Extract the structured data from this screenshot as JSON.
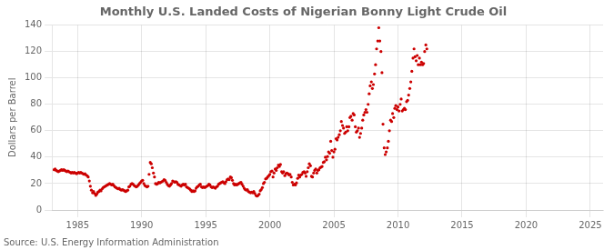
{
  "chart_data": {
    "type": "scatter",
    "title": "Monthly U.S. Landed Costs of Nigerian Bonny Light Crude Oil",
    "ylabel": "Dollars per Barrel",
    "annotation": "Source: U.S. Energy Information Administration",
    "color": "#cc0000",
    "grid": true,
    "xlim": [
      1983,
      2026
    ],
    "ylim": [
      0,
      140
    ],
    "xticks": [
      1985,
      1990,
      1995,
      2000,
      2005,
      2010,
      2015,
      2020,
      2025
    ],
    "yticks": [
      0,
      20,
      40,
      60,
      80,
      100,
      120,
      140
    ],
    "x": [
      1983.17,
      1983.25,
      1983.33,
      1983.42,
      1983.5,
      1983.58,
      1983.67,
      1983.75,
      1983.83,
      1983.92,
      1984.0,
      1984.08,
      1984.17,
      1984.25,
      1984.33,
      1984.42,
      1984.5,
      1984.58,
      1984.67,
      1984.75,
      1984.83,
      1984.92,
      1985.0,
      1985.08,
      1985.17,
      1985.25,
      1985.33,
      1985.42,
      1985.5,
      1985.58,
      1985.67,
      1985.75,
      1985.83,
      1985.92,
      1986.0,
      1986.08,
      1986.17,
      1986.25,
      1986.33,
      1986.42,
      1986.5,
      1986.58,
      1986.67,
      1986.75,
      1986.83,
      1986.92,
      1987.0,
      1987.08,
      1987.17,
      1987.25,
      1987.33,
      1987.42,
      1987.5,
      1987.58,
      1987.67,
      1987.75,
      1987.83,
      1987.92,
      1988.0,
      1988.08,
      1988.17,
      1988.25,
      1988.33,
      1988.42,
      1988.5,
      1988.58,
      1988.67,
      1988.75,
      1988.83,
      1988.92,
      1989.0,
      1989.08,
      1989.17,
      1989.25,
      1989.33,
      1989.42,
      1989.5,
      1989.58,
      1989.67,
      1989.75,
      1989.83,
      1989.92,
      1990.0,
      1990.08,
      1990.17,
      1990.25,
      1990.33,
      1990.42,
      1990.5,
      1990.58,
      1990.67,
      1990.75,
      1990.83,
      1990.92,
      1991.0,
      1991.08,
      1991.17,
      1991.25,
      1991.33,
      1991.42,
      1991.5,
      1991.58,
      1991.67,
      1991.75,
      1991.83,
      1991.92,
      1992.0,
      1992.08,
      1992.17,
      1992.25,
      1992.33,
      1992.42,
      1992.5,
      1992.58,
      1992.67,
      1992.75,
      1992.83,
      1992.92,
      1993.0,
      1993.08,
      1993.17,
      1993.25,
      1993.33,
      1993.42,
      1993.5,
      1993.58,
      1993.67,
      1993.75,
      1993.83,
      1993.92,
      1994.0,
      1994.08,
      1994.17,
      1994.25,
      1994.33,
      1994.42,
      1994.5,
      1994.58,
      1994.67,
      1994.75,
      1994.83,
      1994.92,
      1995.0,
      1995.08,
      1995.17,
      1995.25,
      1995.33,
      1995.42,
      1995.5,
      1995.58,
      1995.67,
      1995.75,
      1995.83,
      1995.92,
      1996.0,
      1996.08,
      1996.17,
      1996.25,
      1996.33,
      1996.42,
      1996.5,
      1996.58,
      1996.67,
      1996.75,
      1996.83,
      1996.92,
      1997.0,
      1997.08,
      1997.17,
      1997.25,
      1997.33,
      1997.42,
      1997.5,
      1997.58,
      1997.67,
      1997.75,
      1997.83,
      1997.92,
      1998.0,
      1998.08,
      1998.17,
      1998.25,
      1998.33,
      1998.42,
      1998.5,
      1998.58,
      1998.67,
      1998.75,
      1998.83,
      1998.92,
      1999.0,
      1999.08,
      1999.17,
      1999.25,
      1999.33,
      1999.42,
      1999.5,
      1999.58,
      1999.67,
      1999.75,
      1999.83,
      1999.92,
      2000.0,
      2000.08,
      2000.17,
      2000.25,
      2000.33,
      2000.42,
      2000.5,
      2000.58,
      2000.67,
      2000.75,
      2000.83,
      2000.92,
      2001.0,
      2001.08,
      2001.17,
      2001.25,
      2001.33,
      2001.42,
      2001.5,
      2001.58,
      2001.67,
      2001.75,
      2001.83,
      2001.92,
      2002.0,
      2002.08,
      2002.17,
      2002.25,
      2002.33,
      2002.42,
      2002.5,
      2002.58,
      2002.67,
      2002.75,
      2002.83,
      2002.92,
      2003.0,
      2003.08,
      2003.17,
      2003.25,
      2003.33,
      2003.42,
      2003.5,
      2003.58,
      2003.67,
      2003.75,
      2003.83,
      2003.92,
      2004.0,
      2004.08,
      2004.17,
      2004.25,
      2004.33,
      2004.42,
      2004.5,
      2004.58,
      2004.67,
      2004.75,
      2004.83,
      2004.92,
      2005.0,
      2005.08,
      2005.17,
      2005.25,
      2005.33,
      2005.42,
      2005.5,
      2005.58,
      2005.67,
      2005.75,
      2005.83,
      2005.92,
      2006.0,
      2006.08,
      2006.17,
      2006.25,
      2006.33,
      2006.42,
      2006.5,
      2006.58,
      2006.67,
      2006.75,
      2006.83,
      2006.92,
      2007.0,
      2007.08,
      2007.17,
      2007.25,
      2007.33,
      2007.42,
      2007.5,
      2007.58,
      2007.67,
      2007.75,
      2007.83,
      2007.92,
      2008.0,
      2008.08,
      2008.17,
      2008.25,
      2008.33,
      2008.42,
      2008.5,
      2008.58,
      2008.67,
      2008.75,
      2008.83,
      2008.92,
      2009.0,
      2009.08,
      2009.17,
      2009.25,
      2009.33,
      2009.42,
      2009.5,
      2009.58,
      2009.67,
      2009.75,
      2009.83,
      2009.92,
      2010.0,
      2010.08,
      2010.17,
      2010.25,
      2010.33,
      2010.42,
      2010.5,
      2010.58,
      2010.67,
      2010.75,
      2010.83,
      2010.92,
      2011.0,
      2011.08,
      2011.17,
      2011.25,
      2011.33,
      2011.42,
      2011.5,
      2011.58,
      2011.67,
      2011.75,
      2011.83,
      2011.92,
      2012.0,
      2012.08,
      2012.17,
      2012.25
    ],
    "values": [
      30.5,
      31.0,
      30.0,
      29.5,
      29.0,
      29.5,
      30.0,
      30.5,
      30.0,
      30.5,
      30.0,
      29.5,
      29.0,
      29.5,
      29.0,
      28.5,
      28.0,
      28.5,
      28.0,
      28.5,
      28.0,
      27.5,
      28.0,
      28.5,
      28.0,
      28.5,
      28.0,
      27.5,
      27.0,
      27.5,
      26.5,
      26.0,
      25.0,
      22.0,
      18.0,
      15.0,
      13.0,
      14.0,
      12.5,
      11.0,
      12.0,
      13.5,
      14.0,
      15.0,
      14.5,
      16.0,
      17.0,
      17.5,
      18.0,
      18.5,
      19.0,
      19.5,
      20.0,
      19.5,
      19.0,
      19.5,
      18.5,
      17.5,
      17.0,
      16.5,
      16.0,
      16.5,
      15.5,
      15.0,
      15.5,
      15.0,
      14.5,
      14.0,
      14.5,
      15.0,
      17.5,
      18.0,
      19.5,
      20.0,
      19.5,
      18.5,
      18.0,
      17.5,
      18.0,
      19.0,
      20.0,
      21.0,
      22.0,
      22.5,
      20.0,
      18.5,
      18.0,
      17.5,
      18.0,
      27.0,
      36.0,
      35.0,
      32.0,
      28.0,
      25.0,
      20.0,
      19.5,
      20.0,
      21.0,
      20.5,
      21.0,
      21.5,
      22.0,
      23.0,
      22.5,
      21.0,
      19.5,
      18.5,
      18.0,
      19.0,
      20.0,
      22.0,
      21.5,
      21.0,
      21.5,
      21.0,
      19.5,
      19.0,
      18.5,
      18.0,
      19.0,
      19.5,
      19.0,
      19.5,
      17.5,
      17.0,
      16.5,
      16.0,
      15.0,
      14.0,
      14.5,
      14.0,
      14.5,
      16.5,
      17.5,
      18.0,
      19.0,
      19.5,
      17.5,
      17.0,
      17.5,
      17.0,
      17.5,
      18.0,
      18.5,
      19.5,
      19.0,
      17.5,
      17.0,
      17.5,
      17.0,
      16.5,
      17.5,
      18.0,
      19.5,
      20.0,
      20.5,
      21.0,
      21.5,
      20.5,
      20.0,
      21.5,
      23.0,
      23.5,
      23.0,
      25.0,
      24.5,
      22.5,
      20.0,
      19.0,
      19.5,
      19.0,
      19.5,
      20.0,
      20.5,
      21.0,
      19.5,
      18.0,
      16.5,
      15.5,
      15.0,
      15.5,
      14.0,
      13.5,
      13.0,
      13.5,
      13.0,
      14.0,
      12.5,
      11.0,
      10.5,
      11.0,
      12.0,
      14.5,
      15.5,
      17.0,
      20.0,
      21.0,
      23.5,
      24.0,
      25.0,
      26.0,
      27.0,
      29.0,
      29.5,
      25.0,
      28.0,
      31.0,
      30.0,
      32.0,
      34.0,
      33.0,
      34.5,
      29.0,
      28.0,
      29.0,
      26.0,
      27.5,
      28.0,
      27.5,
      26.5,
      27.0,
      25.0,
      21.0,
      19.0,
      19.5,
      19.0,
      20.5,
      24.0,
      26.5,
      25.0,
      26.5,
      27.0,
      28.5,
      29.0,
      28.0,
      25.5,
      29.0,
      32.0,
      35.0,
      33.5,
      25.5,
      25.0,
      28.0,
      30.0,
      31.0,
      28.0,
      30.0,
      30.5,
      32.0,
      32.5,
      33.0,
      36.0,
      36.5,
      40.0,
      38.0,
      40.5,
      44.0,
      43.0,
      52.0,
      45.0,
      40.0,
      44.0,
      46.0,
      54.0,
      53.0,
      55.0,
      57.0,
      60.0,
      67.0,
      64.0,
      62.0,
      58.0,
      59.0,
      63.0,
      60.0,
      63.0,
      70.0,
      71.0,
      68.0,
      73.0,
      72.0,
      63.0,
      59.0,
      60.0,
      62.0,
      55.0,
      58.0,
      62.0,
      68.0,
      72.0,
      74.0,
      76.0,
      74.0,
      80.0,
      88.0,
      94.0,
      97.0,
      92.0,
      95.0,
      103.0,
      110.0,
      122.0,
      128.0,
      138.0,
      128.0,
      120.0,
      104.0,
      65.0,
      47.0,
      42.0,
      44.0,
      47.0,
      52.0,
      60.0,
      68.0,
      67.0,
      73.0,
      70.0,
      77.0,
      79.0,
      76.0,
      78.0,
      75.0,
      80.0,
      84.0,
      75.0,
      76.0,
      77.0,
      76.0,
      82.0,
      83.0,
      87.0,
      92.0,
      97.0,
      105.0,
      115.0,
      122.0,
      116.0,
      113.0,
      117.0,
      110.0,
      115.0,
      110.0,
      112.0,
      110.0,
      111.0,
      120.0,
      125.0,
      122.0
    ]
  }
}
